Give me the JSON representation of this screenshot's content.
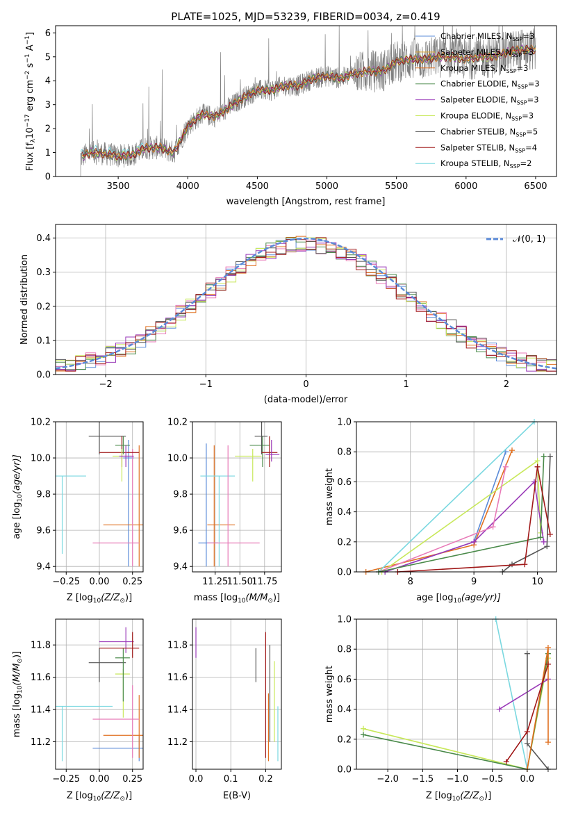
{
  "colors": {
    "chabrier_miles": "#5b8bd8",
    "salpeter_miles": "#e0a82e",
    "kroupa_miles": "#e07020",
    "chabrier_elodie": "#4a8a4a",
    "salpeter_elodie": "#9a3ab8",
    "kroupa_elodie": "#c8e85a",
    "chabrier_stelib": "#555555",
    "salpeter_stelib": "#a01818",
    "kroupa_stelib": "#7ad8e0",
    "pink": "#e87ab8",
    "data_gray": "#808080",
    "normal_dash": "#5b8bd8"
  },
  "spectrum": {
    "title": "PLATE=1025, MJD=53239, FIBERID=0034, z=0.419",
    "xlabel": "wavelength [Angstrom, rest frame]",
    "ylabel": "Flux [f",
    "ylabel_sub": "λ",
    "ylabel_rest": "10",
    "ylabel_sup1": "−17",
    "ylabel_rest2": " erg cm",
    "ylabel_sup2": "−2",
    "ylabel_rest3": " s",
    "ylabel_sup3": "−1",
    "ylabel_rest4": " A",
    "ylabel_sup4": "−1",
    "ylabel_end": "]",
    "xlim": [
      3050,
      6650
    ],
    "ylim": [
      0,
      6.3
    ],
    "xticks": [
      "3500",
      "4000",
      "4500",
      "5000",
      "5500",
      "6000",
      "6500"
    ],
    "yticks": [
      "0",
      "1",
      "2",
      "3",
      "4",
      "5",
      "6"
    ],
    "legend": [
      {
        "label": "Chabrier MILES, N",
        "sub": "SSP",
        "val": "=3"
      },
      {
        "label": "Salpeter MILES, N",
        "sub": "SSP",
        "val": "=3"
      },
      {
        "label": "Kroupa MILES, N",
        "sub": "SSP",
        "val": "=3"
      },
      {
        "label": "Chabrier ELODIE, N",
        "sub": "SSP",
        "val": "=3"
      },
      {
        "label": "Salpeter ELODIE, N",
        "sub": "SSP",
        "val": "=3"
      },
      {
        "label": "Kroupa ELODIE, N",
        "sub": "SSP",
        "val": "=3"
      },
      {
        "label": "Chabrier STELIB, N",
        "sub": "SSP",
        "val": "=5"
      },
      {
        "label": "Salpeter STELIB, N",
        "sub": "SSP",
        "val": "=4"
      },
      {
        "label": "Kroupa STELIB, N",
        "sub": "SSP",
        "val": "=2"
      }
    ]
  },
  "histogram": {
    "xlabel": "(data-model)/error",
    "ylabel": "Normed distribution",
    "xlim": [
      -2.5,
      2.5
    ],
    "ylim": [
      0,
      0.44
    ],
    "xticks": [
      "−2",
      "−1",
      "0",
      "1",
      "2"
    ],
    "yticks": [
      "0.0",
      "0.1",
      "0.2",
      "0.3",
      "0.4"
    ],
    "legend": "𝒩(0, 1)"
  },
  "age_z": {
    "xlabel": "Z [log",
    "xlabel_sub": "10",
    "xlabel_rest": "(Z/Z",
    "xlabel_sub2": "⊙",
    "xlabel_end": ")]",
    "ylabel": "age  [log",
    "ylabel_sub": "10",
    "ylabel_rest": "(age/yr)]",
    "xticks": [
      "−0.25",
      "0.00",
      "0.25"
    ],
    "yticks": [
      "9.4",
      "9.6",
      "9.8",
      "10.0",
      "10.2"
    ]
  },
  "age_mass": {
    "xlabel": "mass [log",
    "xlabel_sub": "10",
    "xlabel_rest": "(M/M",
    "xlabel_sub2": "⊙",
    "xlabel_end": ")]",
    "xticks": [
      "11.25",
      "11.50",
      "11.75"
    ],
    "yticks": [
      "9.4",
      "9.6",
      "9.8",
      "10.0",
      "10.2"
    ]
  },
  "mw_age": {
    "xlabel": "age  [log",
    "xlabel_sub": "10",
    "xlabel_rest": "(age/yr)]",
    "ylabel": "mass weight",
    "xticks": [
      "8",
      "9",
      "10"
    ],
    "yticks": [
      "0.0",
      "0.2",
      "0.4",
      "0.6",
      "0.8",
      "1.0"
    ]
  },
  "mass_z": {
    "xlabel": "Z [log",
    "xlabel_sub": "10",
    "xlabel_rest": "(Z/Z",
    "xlabel_sub2": "⊙",
    "xlabel_end": ")]",
    "ylabel": "mass [log",
    "ylabel_sub": "10",
    "ylabel_rest": "(M/M",
    "ylabel_sub2": "⊙",
    "ylabel_end": ")]",
    "xticks": [
      "−0.25",
      "0.00",
      "0.25"
    ],
    "yticks": [
      "11.2",
      "11.4",
      "11.6",
      "11.8"
    ]
  },
  "mass_ebv": {
    "xlabel": "E(B-V)",
    "xticks": [
      "0.0",
      "0.1",
      "0.2"
    ],
    "yticks": [
      "11.2",
      "11.4",
      "11.6",
      "11.8"
    ]
  },
  "mw_z": {
    "xlabel": "Z [log",
    "xlabel_sub": "10",
    "xlabel_rest": "(Z/Z",
    "xlabel_sub2": "⊙",
    "xlabel_end": ")]",
    "ylabel": "mass weight",
    "xticks": [
      "−2.0",
      "−1.5",
      "−1.0",
      "−0.5",
      "0.0"
    ],
    "yticks": [
      "0.0",
      "0.2",
      "0.4",
      "0.6",
      "0.8",
      "1.0"
    ]
  },
  "chart_data": [
    {
      "type": "line",
      "title": "PLATE=1025, MJD=53239, FIBERID=0034, z=0.419",
      "xlabel": "wavelength [Angstrom, rest frame]",
      "ylabel": "Flux [fλ10^-17 erg cm^-2 s^-1 A^-1]",
      "xlim": [
        3050,
        6650
      ],
      "ylim": [
        0,
        6.3
      ],
      "grid": false,
      "legend_position": "top-right",
      "x": [
        3230,
        3300,
        3400,
        3500,
        3600,
        3700,
        3800,
        3900,
        4000,
        4100,
        4200,
        4300,
        4400,
        4500,
        4600,
        4700,
        4800,
        4900,
        5000,
        5100,
        5200,
        5300,
        5400,
        5500,
        5600,
        5700,
        5800,
        5900,
        6000,
        6100,
        6200,
        6300,
        6400,
        6500
      ],
      "series": [
        {
          "name": "model",
          "values": [
            0.8,
            1.0,
            0.95,
            0.85,
            0.9,
            1.2,
            1.2,
            1.0,
            2.1,
            2.6,
            2.5,
            2.9,
            3.3,
            3.6,
            3.6,
            3.8,
            3.8,
            4.1,
            4.2,
            4.1,
            4.3,
            4.4,
            4.4,
            4.8,
            4.9,
            4.9,
            5.0,
            5.0,
            4.9,
            5.0,
            5.0,
            5.2,
            5.3,
            5.3
          ]
        }
      ]
    },
    {
      "type": "bar",
      "xlabel": "(data-model)/error",
      "ylabel": "Normed distribution",
      "xlim": [
        -2.5,
        2.5
      ],
      "ylim": [
        0,
        0.44
      ],
      "grid": true,
      "x": [
        -2.4,
        -2.2,
        -2.0,
        -1.8,
        -1.6,
        -1.4,
        -1.2,
        -1.0,
        -0.8,
        -0.6,
        -0.4,
        -0.2,
        0.0,
        0.2,
        0.4,
        0.6,
        0.8,
        1.0,
        1.2,
        1.4,
        1.6,
        1.8,
        2.0,
        2.2,
        2.4
      ],
      "series": [
        {
          "name": "residuals",
          "values": [
            0.04,
            0.05,
            0.07,
            0.1,
            0.13,
            0.16,
            0.2,
            0.24,
            0.28,
            0.32,
            0.35,
            0.37,
            0.38,
            0.37,
            0.35,
            0.32,
            0.29,
            0.25,
            0.21,
            0.17,
            0.14,
            0.11,
            0.08,
            0.06,
            0.05
          ]
        },
        {
          "name": "𝒩(0, 1)",
          "values": [
            0.022,
            0.035,
            0.054,
            0.079,
            0.111,
            0.15,
            0.194,
            0.242,
            0.29,
            0.333,
            0.368,
            0.391,
            0.399,
            0.391,
            0.368,
            0.333,
            0.29,
            0.242,
            0.194,
            0.15,
            0.111,
            0.079,
            0.054,
            0.035,
            0.022
          ]
        }
      ]
    },
    {
      "type": "scatter",
      "xlabel": "Z [log10(Z/Z⊙)]",
      "ylabel": "age [log10(age/yr)]",
      "xlim": [
        -0.33,
        0.33
      ],
      "ylim": [
        9.37,
        10.2
      ],
      "grid": true,
      "series": [
        {
          "name": "Chabrier MILES",
          "x": [
            0.22
          ],
          "y": [
            10.0
          ]
        },
        {
          "name": "Kroupa MILES",
          "x": [
            0.17
          ],
          "y": [
            9.63
          ]
        },
        {
          "name": "Kroupa STELIB",
          "x": [
            -0.28
          ],
          "y": [
            9.9
          ]
        },
        {
          "name": "pink",
          "x": [
            0.13
          ],
          "y": [
            9.53
          ]
        },
        {
          "name": "Chabrier STELIB",
          "x": [
            0.0
          ],
          "y": [
            10.12
          ]
        },
        {
          "name": "Salpeter STELIB",
          "x": [
            0.17
          ],
          "y": [
            10.03
          ]
        },
        {
          "name": "Chabrier ELODIE",
          "x": [
            0.18
          ],
          "y": [
            10.07
          ]
        },
        {
          "name": "Kroupa ELODIE",
          "x": [
            0.17
          ],
          "y": [
            10.02
          ]
        },
        {
          "name": "Salpeter ELODIE",
          "x": [
            0.2
          ],
          "y": [
            10.01
          ]
        }
      ]
    },
    {
      "type": "scatter",
      "xlabel": "mass [log10(M/M⊙)]",
      "xlim": [
        11.02,
        11.92
      ],
      "ylim": [
        9.37,
        10.2
      ],
      "grid": true,
      "series": [
        {
          "name": "Chabrier MILES",
          "x": [
            11.16
          ],
          "y": [
            9.53
          ]
        },
        {
          "name": "Kroupa MILES",
          "x": [
            11.24
          ],
          "y": [
            9.63
          ]
        },
        {
          "name": "Kroupa STELIB",
          "x": [
            11.29
          ],
          "y": [
            9.9
          ]
        },
        {
          "name": "pink",
          "x": [
            11.47
          ],
          "y": [
            9.53
          ]
        },
        {
          "name": "Chabrier ELODIE",
          "x": [
            11.73
          ],
          "y": [
            10.07
          ]
        },
        {
          "name": "Chabrier STELIB",
          "x": [
            11.7
          ],
          "y": [
            10.12
          ]
        },
        {
          "name": "Kroupa ELODIE",
          "x": [
            11.63
          ],
          "y": [
            10.01
          ]
        },
        {
          "name": "Salpeter STELIB",
          "x": [
            11.8
          ],
          "y": [
            10.03
          ]
        },
        {
          "name": "Salpeter ELODIE",
          "x": [
            11.82
          ],
          "y": [
            10.02
          ]
        }
      ]
    },
    {
      "type": "line",
      "xlabel": "age [log10(age/yr)]",
      "ylabel": "mass weight",
      "xlim": [
        7.15,
        10.3
      ],
      "ylim": [
        0,
        1
      ],
      "grid": true,
      "series": [
        {
          "name": "Chabrier MILES",
          "x": [
            7.6,
            9.0,
            9.5
          ],
          "y": [
            0.0,
            0.2,
            0.8
          ]
        },
        {
          "name": "Kroupa MILES",
          "x": [
            7.3,
            9.0,
            9.6
          ],
          "y": [
            0.0,
            0.18,
            0.81
          ]
        },
        {
          "name": "Kroupa STELIB",
          "x": [
            7.5,
            9.95
          ],
          "y": [
            0.0,
            1.0
          ]
        },
        {
          "name": "Kroupa ELODIE",
          "x": [
            7.55,
            10.0,
            10.05
          ],
          "y": [
            0.0,
            0.74,
            0.26
          ]
        },
        {
          "name": "Salpeter ELODIE",
          "x": [
            7.6,
            9.0,
            9.95,
            10.1
          ],
          "y": [
            0.0,
            0.2,
            0.6,
            0.2
          ]
        },
        {
          "name": "pink",
          "x": [
            7.5,
            9.3,
            9.5
          ],
          "y": [
            0.0,
            0.3,
            0.7
          ]
        },
        {
          "name": "Chabrier ELODIE",
          "x": [
            7.5,
            10.05,
            10.1
          ],
          "y": [
            0.0,
            0.23,
            0.77
          ]
        },
        {
          "name": "Chabrier STELIB",
          "x": [
            9.45,
            9.6,
            10.15,
            10.2
          ],
          "y": [
            0.0,
            0.05,
            0.17,
            0.77
          ]
        },
        {
          "name": "Salpeter STELIB",
          "x": [
            7.8,
            9.8,
            10.0,
            10.2
          ],
          "y": [
            0.0,
            0.05,
            0.7,
            0.25
          ]
        }
      ]
    },
    {
      "type": "scatter",
      "xlabel": "Z [log10(Z/Z⊙)]",
      "ylabel": "mass [log10(M/M⊙)]",
      "xlim": [
        -0.33,
        0.33
      ],
      "ylim": [
        11.03,
        11.96
      ],
      "grid": true,
      "series": [
        {
          "name": "Chabrier MILES",
          "x": [
            0.15
          ],
          "y": [
            11.16
          ]
        },
        {
          "name": "Kroupa MILES",
          "x": [
            0.2
          ],
          "y": [
            11.24
          ]
        },
        {
          "name": "Kroupa STELIB",
          "x": [
            -0.12
          ],
          "y": [
            11.42
          ]
        },
        {
          "name": "pink",
          "x": [
            0.1
          ],
          "y": [
            11.34
          ]
        },
        {
          "name": "Chabrier STELIB",
          "x": [
            0.05
          ],
          "y": [
            11.69
          ]
        },
        {
          "name": "Kroupa ELODIE",
          "x": [
            0.12
          ],
          "y": [
            11.62
          ]
        },
        {
          "name": "Chabrier ELODIE",
          "x": [
            0.15
          ],
          "y": [
            11.72
          ]
        },
        {
          "name": "Salpeter ELODIE",
          "x": [
            0.2
          ],
          "y": [
            11.82
          ]
        },
        {
          "name": "Salpeter STELIB",
          "x": [
            0.13
          ],
          "y": [
            11.78
          ]
        }
      ]
    },
    {
      "type": "scatter",
      "xlabel": "E(B-V)",
      "xlim": [
        -0.01,
        0.245
      ],
      "ylim": [
        11.03,
        11.96
      ],
      "grid": true,
      "series": [
        {
          "name": "Salpeter ELODIE",
          "x": [
            0.0
          ],
          "y": [
            11.82
          ]
        },
        {
          "name": "Chabrier STELIB",
          "x": [
            0.172
          ],
          "y": [
            11.69
          ]
        },
        {
          "name": "Salpeter STELIB",
          "x": [
            0.2
          ],
          "y": [
            11.5
          ]
        },
        {
          "name": "Kroupa MILES",
          "x": [
            0.208
          ],
          "y": [
            11.3
          ]
        },
        {
          "name": "Kroupa ELODIE",
          "x": [
            0.225
          ],
          "y": [
            11.45
          ]
        },
        {
          "name": "Kroupa STELIB",
          "x": [
            0.235
          ],
          "y": [
            11.25
          ]
        }
      ]
    },
    {
      "type": "line",
      "xlabel": "Z [log10(Z/Z⊙)]",
      "ylabel": "mass weight",
      "xlim": [
        -2.45,
        0.42
      ],
      "ylim": [
        0,
        1
      ],
      "grid": true,
      "series": [
        {
          "name": "Kroupa ELODIE",
          "x": [
            -2.35,
            0.0,
            0.3
          ],
          "y": [
            0.27,
            0.0,
            0.74
          ]
        },
        {
          "name": "Chabrier ELODIE",
          "x": [
            -2.35,
            0.0,
            0.3
          ],
          "y": [
            0.23,
            0.0,
            0.77
          ]
        },
        {
          "name": "Kroupa STELIB",
          "x": [
            -0.45,
            0.0
          ],
          "y": [
            1.0,
            0.0
          ]
        },
        {
          "name": "Salpeter ELODIE",
          "x": [
            -0.4,
            0.3
          ],
          "y": [
            0.4,
            0.6
          ]
        },
        {
          "name": "Chabrier STELIB",
          "x": [
            0.0,
            0.0,
            0.3
          ],
          "y": [
            0.77,
            0.17,
            0.0
          ]
        },
        {
          "name": "Kroupa MILES",
          "x": [
            0.0,
            0.3,
            0.3
          ],
          "y": [
            0.0,
            0.81,
            0.18
          ]
        },
        {
          "name": "Salpeter STELIB",
          "x": [
            -0.3,
            0.0,
            0.3
          ],
          "y": [
            0.05,
            0.25,
            0.7
          ]
        }
      ]
    }
  ]
}
